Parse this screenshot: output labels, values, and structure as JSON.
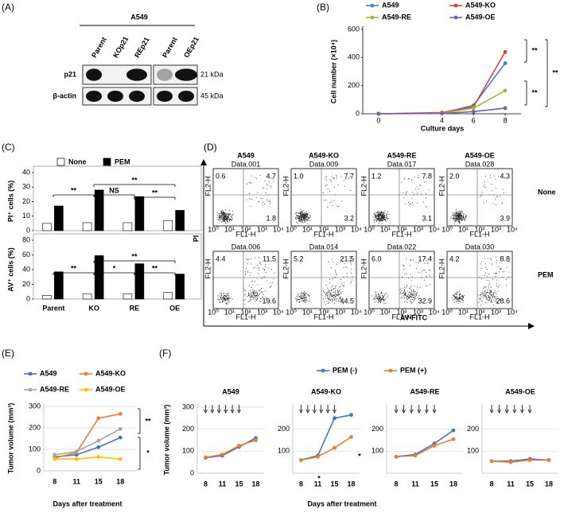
{
  "panel_labels": [
    "(A)",
    "(B)",
    "(C)",
    "(D)",
    "(E)",
    "(F)"
  ],
  "blot": {
    "title": "A549",
    "lanes": [
      "Parent",
      "KOp21",
      "REp21",
      "Parent",
      "OEp21"
    ],
    "rows": [
      {
        "label": "p21",
        "size": "21 kDa"
      },
      {
        "label": "β-actin",
        "size": "45 kDa"
      }
    ]
  },
  "flow": {
    "columns": [
      "A549",
      "A549-KO",
      "A549-RE",
      "A549-OE"
    ],
    "rows": [
      "None",
      "PEM"
    ],
    "y_label": "PI",
    "x_label": "AV-FITC",
    "plot_x_label": "FL1-H",
    "plot_y_label": "FL2-H",
    "tick_labels": [
      "10⁰",
      "10¹",
      "10²",
      "10³",
      "10⁴"
    ],
    "plots": [
      [
        {
          "id": "Data.001",
          "quadrants": [
            "0.6",
            "4.7",
            "1.8"
          ]
        },
        {
          "id": "Data.009",
          "quadrants": [
            "1.0",
            "7.7",
            "3.2"
          ]
        },
        {
          "id": "Data.017",
          "quadrants": [
            "1.2",
            "7.8",
            "3.1"
          ]
        },
        {
          "id": "Data.028",
          "quadrants": [
            "2.0",
            "4.3",
            "3.9"
          ]
        }
      ],
      [
        {
          "id": "Data.006",
          "quadrants": [
            "4.4",
            "11.5",
            "19.6"
          ]
        },
        {
          "id": "Data.014",
          "quadrants": [
            "5.2",
            "21.5",
            "44.5"
          ]
        },
        {
          "id": "Data.022",
          "quadrants": [
            "6.0",
            "17.4",
            "32.9"
          ]
        },
        {
          "id": "Data.030",
          "quadrants": [
            "4.2",
            "8.8",
            "28.6"
          ]
        }
      ]
    ]
  },
  "chart_data": [
    {
      "type": "line",
      "x_label": "Culture days",
      "y_label": "Cell number (×10⁴)",
      "x": [
        0,
        4,
        6,
        8
      ],
      "xlim": [
        -1,
        9
      ],
      "xticks": [
        0,
        4,
        6,
        8
      ],
      "ylim": [
        0,
        600
      ],
      "yticks": [
        0,
        200,
        400,
        600
      ],
      "grid": false,
      "series": [
        {
          "name": "A549",
          "color": "#4a7fd4",
          "values": [
            0,
            5,
            60,
            360
          ]
        },
        {
          "name": "A549-KO",
          "color": "#d9413a",
          "values": [
            0,
            8,
            50,
            440
          ]
        },
        {
          "name": "A549-RE",
          "color": "#9cbb3c",
          "values": [
            0,
            3,
            40,
            165
          ]
        },
        {
          "name": "A549-OE",
          "color": "#7b5ea7",
          "values": [
            0,
            2,
            15,
            40
          ]
        }
      ],
      "annotations": [
        "**",
        "**",
        "**"
      ]
    },
    {
      "type": "bar",
      "y_label": "PI⁺ cells (%)",
      "ylim": [
        0,
        40
      ],
      "yticks": [
        0,
        10,
        20,
        30,
        40
      ],
      "series": [
        {
          "name": "None",
          "color": "#ffffff",
          "values": [
            5,
            5.5,
            5.5,
            7
          ]
        },
        {
          "name": "PEM",
          "color": "#000000",
          "values": [
            17,
            28,
            23.5,
            14
          ]
        }
      ],
      "annotations": [
        "**",
        "NS",
        "**",
        "**"
      ]
    },
    {
      "type": "bar",
      "y_label": "AV⁺ cells (%)",
      "categories": [
        "Parent",
        "KO",
        "RE",
        "OE"
      ],
      "ylim": [
        0,
        80
      ],
      "yticks": [
        0,
        20,
        40,
        60,
        80
      ],
      "series": [
        {
          "color": "#ffffff",
          "values": [
            5,
            7,
            7,
            9
          ]
        },
        {
          "color": "#000000",
          "values": [
            37,
            59,
            48,
            34
          ]
        }
      ],
      "annotations": [
        "**",
        "*",
        "**",
        "**"
      ]
    },
    {
      "type": "line",
      "x_label": "Days after treatment",
      "y_label": "Tumor volume (mm³)",
      "categories": [
        "8",
        "11",
        "15",
        "18"
      ],
      "ylim": [
        0,
        300
      ],
      "yticks": [
        0,
        100,
        200,
        300
      ],
      "grid": true,
      "series": [
        {
          "name": "A549",
          "color": "#4472c4",
          "values": [
            65,
            75,
            110,
            155
          ]
        },
        {
          "name": "A549-KO",
          "color": "#ed7d31",
          "values": [
            60,
            85,
            245,
            265
          ]
        },
        {
          "name": "A549-RE",
          "color": "#a5a5a5",
          "values": [
            75,
            90,
            140,
            195
          ]
        },
        {
          "name": "A549-OE",
          "color": "#ffc000",
          "values": [
            55,
            55,
            65,
            55
          ]
        }
      ],
      "annotations": [
        "**",
        "*"
      ]
    },
    {
      "type": "line",
      "title": "A549",
      "x_label": "Days after treatment",
      "y_label": "Tumor volume (mm³)",
      "categories": [
        "8",
        "11",
        "15",
        "18"
      ],
      "ylim": [
        0,
        300
      ],
      "yticks": [
        0,
        100,
        200,
        300
      ],
      "grid": true,
      "series": [
        {
          "name": "PEM (-)",
          "color": "#4472c4",
          "values": [
            70,
            80,
            120,
            160
          ]
        },
        {
          "name": "PEM (+)",
          "color": "#ed7d31",
          "values": [
            72,
            85,
            125,
            150
          ]
        }
      ]
    },
    {
      "type": "line",
      "title": "A549-KO",
      "categories": [
        "8",
        "11",
        "15",
        "18"
      ],
      "ylim": [
        0,
        300
      ],
      "yticks": [
        100,
        200
      ],
      "grid": true,
      "series": [
        {
          "color": "#4472c4",
          "values": [
            60,
            80,
            250,
            265
          ]
        },
        {
          "color": "#ed7d31",
          "values": [
            60,
            75,
            115,
            165
          ]
        }
      ],
      "annotations": [
        "*",
        "*"
      ]
    },
    {
      "type": "line",
      "title": "A549-RE",
      "categories": [
        "8",
        "11",
        "15",
        "18"
      ],
      "ylim": [
        0,
        300
      ],
      "yticks": [
        100,
        200
      ],
      "grid": true,
      "series": [
        {
          "color": "#4472c4",
          "values": [
            75,
            85,
            135,
            195
          ]
        },
        {
          "color": "#ed7d31",
          "values": [
            75,
            80,
            125,
            155
          ]
        }
      ]
    },
    {
      "type": "line",
      "title": "A549-OE",
      "categories": [
        "8",
        "11",
        "15",
        "18"
      ],
      "ylim": [
        0,
        300
      ],
      "yticks": [
        100,
        200
      ],
      "grid": true,
      "series": [
        {
          "color": "#4472c4",
          "values": [
            55,
            55,
            65,
            60
          ]
        },
        {
          "color": "#ed7d31",
          "values": [
            55,
            50,
            60,
            60
          ]
        }
      ]
    }
  ]
}
